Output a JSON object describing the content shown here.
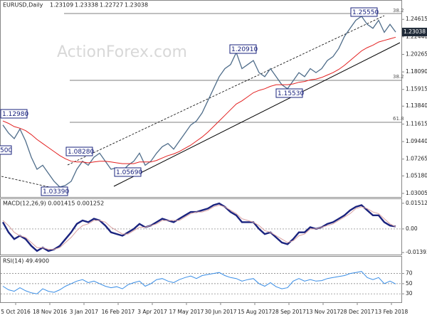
{
  "header": {
    "symbol": "EURUSD,Daily",
    "ohlc": [
      "1.23109",
      "1.23338",
      "1.22727",
      "1.23038"
    ]
  },
  "watermark": "ActionForex.com",
  "x_axis_labels": [
    "5 Oct 2016",
    "18 Nov 2016",
    "3 Jan 2017",
    "16 Feb 2017",
    "3 Apr 2017",
    "17 May 2017",
    "30 Jun 2017",
    "15 Aug 2017",
    "28 Sep 2017",
    "13 Nov 2017",
    "28 Dec 2017",
    "13 Feb 2018"
  ],
  "chart_data": [
    {
      "type": "line",
      "current_label": "1.23038",
      "annotations": [
        "1.25550",
        "1.20910",
        "1.12980",
        "1.08280",
        "1.05690",
        "1.03390",
        "1.15530",
        "500",
        "38.2",
        "38.2",
        "61.8"
      ],
      "ylim": [
        1.0256,
        1.2693
      ],
      "yticks": [
        1.24615,
        {
          "value": 1.2244,
          "label": "1.22440"
        },
        1.20265,
        {
          "value": 1.1809,
          "label": "1.18090"
        },
        1.15915,
        {
          "value": 1.1384,
          "label": "1.13840"
        },
        1.11615,
        {
          "value": 1.0944,
          "label": "1.09440"
        },
        1.07265,
        {
          "value": 1.0518,
          "label": "1.05180"
        },
        1.03005
      ],
      "series": [
        {
          "color": "#4f6d8a",
          "values": [
            1.115,
            1.105,
            1.098,
            1.11,
            1.095,
            1.075,
            1.06,
            1.065,
            1.055,
            1.045,
            1.038,
            1.04,
            1.045,
            1.06,
            1.07,
            1.065,
            1.075,
            1.08,
            1.07,
            1.06,
            1.062,
            1.058,
            1.065,
            1.07,
            1.08,
            1.065,
            1.07,
            1.08,
            1.088,
            1.092,
            1.085,
            1.095,
            1.105,
            1.115,
            1.12,
            1.13,
            1.145,
            1.16,
            1.175,
            1.185,
            1.19,
            1.205,
            1.185,
            1.19,
            1.195,
            1.18,
            1.175,
            1.185,
            1.175,
            1.165,
            1.16,
            1.17,
            1.18,
            1.175,
            1.185,
            1.18,
            1.185,
            1.195,
            1.2,
            1.21,
            1.225,
            1.235,
            1.245,
            1.25,
            1.24,
            1.235,
            1.245,
            1.23,
            1.24,
            1.2304
          ]
        },
        {
          "color": "#e32020",
          "values": [
            1.12,
            1.117,
            1.113,
            1.111,
            1.108,
            1.103,
            1.097,
            1.092,
            1.087,
            1.082,
            1.077,
            1.073,
            1.07,
            1.069,
            1.069,
            1.068,
            1.069,
            1.07,
            1.07,
            1.069,
            1.068,
            1.067,
            1.067,
            1.067,
            1.069,
            1.069,
            1.069,
            1.071,
            1.074,
            1.077,
            1.079,
            1.082,
            1.086,
            1.09,
            1.095,
            1.1,
            1.106,
            1.113,
            1.12,
            1.127,
            1.134,
            1.141,
            1.145,
            1.15,
            1.155,
            1.158,
            1.16,
            1.163,
            1.165,
            1.165,
            1.165,
            1.166,
            1.168,
            1.169,
            1.171,
            1.172,
            1.174,
            1.177,
            1.18,
            1.184,
            1.189,
            1.195,
            1.201,
            1.207,
            1.211,
            1.214,
            1.218,
            1.22,
            1.222,
            1.224
          ]
        }
      ]
    },
    {
      "type": "line",
      "title": "MACD(12,26,9) 0.001415 0.001252",
      "ylim": [
        -0.01512,
        0.01757
      ],
      "yticks": [
        0.01512,
        {
          "value": 0,
          "label": "0.00"
        },
        -0.01393
      ],
      "series": [
        {
          "color": "#1a237e",
          "values": [
            0.004,
            -0.002,
            -0.006,
            -0.004,
            -0.006,
            -0.01,
            -0.013,
            -0.011,
            -0.013,
            -0.012,
            -0.01,
            -0.006,
            -0.002,
            0.003,
            0.005,
            0.004,
            0.006,
            0.005,
            0.002,
            -0.002,
            -0.003,
            -0.004,
            -0.002,
            0.0,
            0.003,
            0.001,
            0.002,
            0.004,
            0.006,
            0.005,
            0.004,
            0.006,
            0.008,
            0.01,
            0.01,
            0.011,
            0.012,
            0.014,
            0.015,
            0.013,
            0.01,
            0.008,
            0.004,
            0.004,
            0.004,
            0.0,
            -0.003,
            -0.002,
            -0.005,
            -0.008,
            -0.009,
            -0.006,
            -0.002,
            -0.002,
            0.001,
            0.0,
            0.001,
            0.003,
            0.004,
            0.006,
            0.008,
            0.011,
            0.013,
            0.014,
            0.011,
            0.008,
            0.008,
            0.004,
            0.002,
            0.001415
          ]
        },
        {
          "color": "#d9a0a0",
          "values": [
            0.005,
            0.002,
            -0.002,
            -0.004,
            -0.005,
            -0.008,
            -0.011,
            -0.011,
            -0.012,
            -0.012,
            -0.011,
            -0.008,
            -0.005,
            -0.001,
            0.002,
            0.003,
            0.005,
            0.005,
            0.004,
            0.001,
            -0.001,
            -0.003,
            -0.003,
            -0.001,
            0.001,
            0.001,
            0.002,
            0.003,
            0.005,
            0.005,
            0.005,
            0.005,
            0.007,
            0.009,
            0.01,
            0.01,
            0.011,
            0.013,
            0.014,
            0.013,
            0.011,
            0.009,
            0.006,
            0.005,
            0.004,
            0.002,
            -0.001,
            -0.002,
            -0.004,
            -0.006,
            -0.008,
            -0.007,
            -0.004,
            -0.003,
            0.0,
            0.0,
            0.001,
            0.002,
            0.003,
            0.005,
            0.007,
            0.009,
            0.012,
            0.013,
            0.012,
            0.01,
            0.009,
            0.006,
            0.003,
            0.001252
          ]
        }
      ]
    },
    {
      "type": "line",
      "title": "RSI(14) 49.4900",
      "ylim": [
        13.5,
        103
      ],
      "yticks": [
        70,
        50,
        30
      ],
      "series": [
        {
          "color": "#3a8ee6",
          "values": [
            45,
            38,
            35,
            42,
            36,
            32,
            30,
            40,
            35,
            33,
            38,
            45,
            50,
            55,
            58,
            52,
            55,
            50,
            45,
            42,
            44,
            40,
            48,
            52,
            55,
            45,
            50,
            58,
            60,
            55,
            52,
            58,
            62,
            65,
            60,
            66,
            68,
            70,
            72,
            66,
            62,
            60,
            55,
            58,
            60,
            50,
            45,
            52,
            44,
            40,
            42,
            55,
            60,
            55,
            58,
            55,
            56,
            60,
            62,
            64,
            66,
            70,
            72,
            74,
            62,
            58,
            62,
            50,
            55,
            49.49
          ]
        }
      ]
    }
  ]
}
